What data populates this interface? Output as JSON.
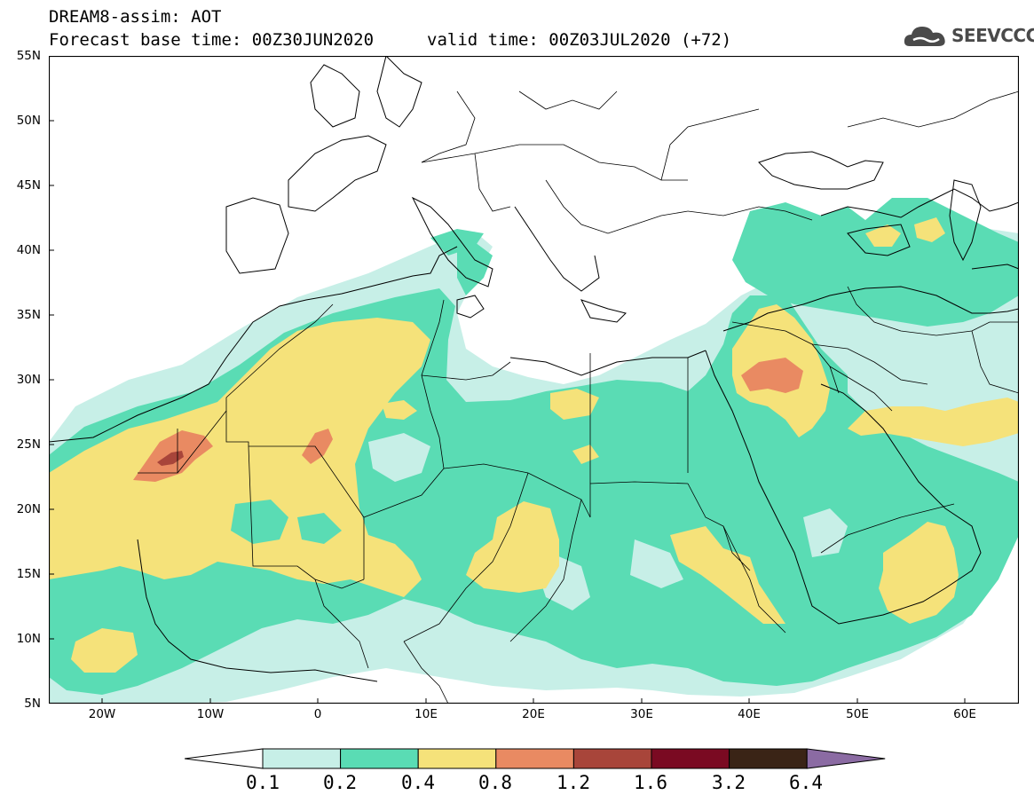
{
  "header": {
    "line1": "DREAM8-assim: AOT",
    "base_time": "Forecast base time: 00Z30JUN2020",
    "valid_time": "valid time: 00Z03JUL2020 (+72)"
  },
  "logo": {
    "text": "SEEVCCC",
    "icon": "cloud-logo-icon"
  },
  "map": {
    "lat_labels": [
      "55N",
      "50N",
      "45N",
      "40N",
      "35N",
      "30N",
      "25N",
      "20N",
      "15N",
      "10N",
      "5N"
    ],
    "lon_labels": [
      "20W",
      "10W",
      "0",
      "10E",
      "20E",
      "30E",
      "40E",
      "50E",
      "60E"
    ],
    "extent": {
      "lon": [
        -25,
        65
      ],
      "lat": [
        5,
        55
      ]
    }
  },
  "colorbar": {
    "labels": [
      "0.1",
      "0.2",
      "0.4",
      "0.8",
      "1.2",
      "1.6",
      "3.2",
      "6.4"
    ],
    "colors": [
      "#ffffff",
      "#c7efe7",
      "#5adcb4",
      "#f5e27a",
      "#e98a62",
      "#a8453a",
      "#7a0a22",
      "#3a2416",
      "#8b6ba3"
    ]
  },
  "colors": {
    "level1": "#c7efe7",
    "level2": "#5adcb4",
    "level3": "#f5e27a",
    "level4": "#e98a62",
    "level5": "#a8453a"
  }
}
